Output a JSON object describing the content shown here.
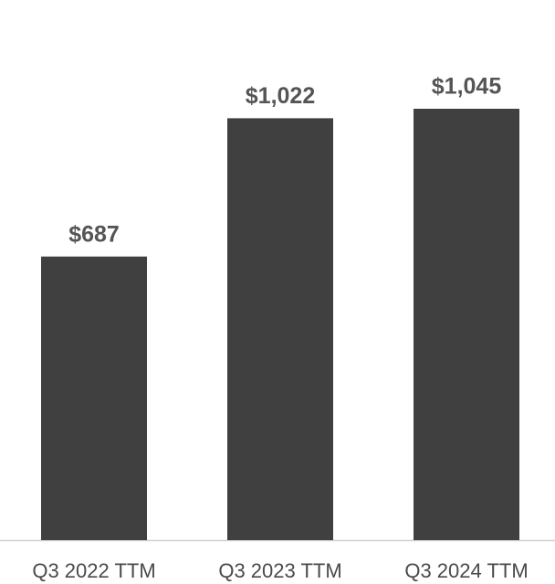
{
  "chart_data": {
    "type": "bar",
    "categories": [
      "Q3 2022 TTM",
      "Q3 2023 TTM",
      "Q3 2024 TTM"
    ],
    "values": [
      687,
      1022,
      1045
    ],
    "value_labels": [
      "$687",
      "$1,022",
      "$1,045"
    ],
    "color": "#404040"
  }
}
